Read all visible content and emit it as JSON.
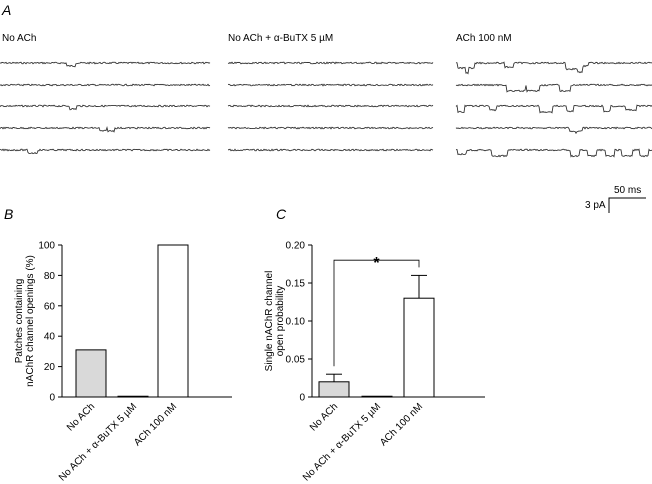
{
  "panelA": {
    "letter": "A",
    "conditions": [
      "No ACh",
      "No ACh + α-BuTX 5 µM",
      "ACh 100 nM"
    ],
    "scale_bar": {
      "time": "50 ms",
      "current": "3 pA"
    }
  },
  "chart_data": [
    {
      "type": "bar",
      "letter": "B",
      "categories": [
        "No ACh",
        "No ACh + α-BuTX 5 µM",
        "ACh 100 nM"
      ],
      "values": [
        31,
        0.5,
        100
      ],
      "colors": [
        "#d9d9d9",
        "#ffffff",
        "#ffffff"
      ],
      "ylabel": "Patches containing nAChR channel openings (%)",
      "ylabel_lines": [
        "Patches containing",
        "nAChR channel openings (%)"
      ],
      "ylim": [
        0,
        100
      ],
      "yticks": [
        "0",
        "20",
        "40",
        "60",
        "80",
        "100"
      ],
      "grid": false
    },
    {
      "type": "bar",
      "letter": "C",
      "categories": [
        "No ACh",
        "No ACh + α-BuTX 5 µM",
        "ACh 100 nM"
      ],
      "values": [
        0.02,
        0.001,
        0.13
      ],
      "errors": [
        0.01,
        0,
        0.03
      ],
      "colors": [
        "#d9d9d9",
        "#ffffff",
        "#ffffff"
      ],
      "ylabel": "Single nAChR channel open probability",
      "ylabel_lines": [
        "Single nAChR channel",
        "open probability"
      ],
      "ylim": [
        0,
        0.2
      ],
      "yticks": [
        "0",
        "0.05",
        "0.10",
        "0.15",
        "0.20"
      ],
      "significance": "*",
      "grid": false
    }
  ]
}
